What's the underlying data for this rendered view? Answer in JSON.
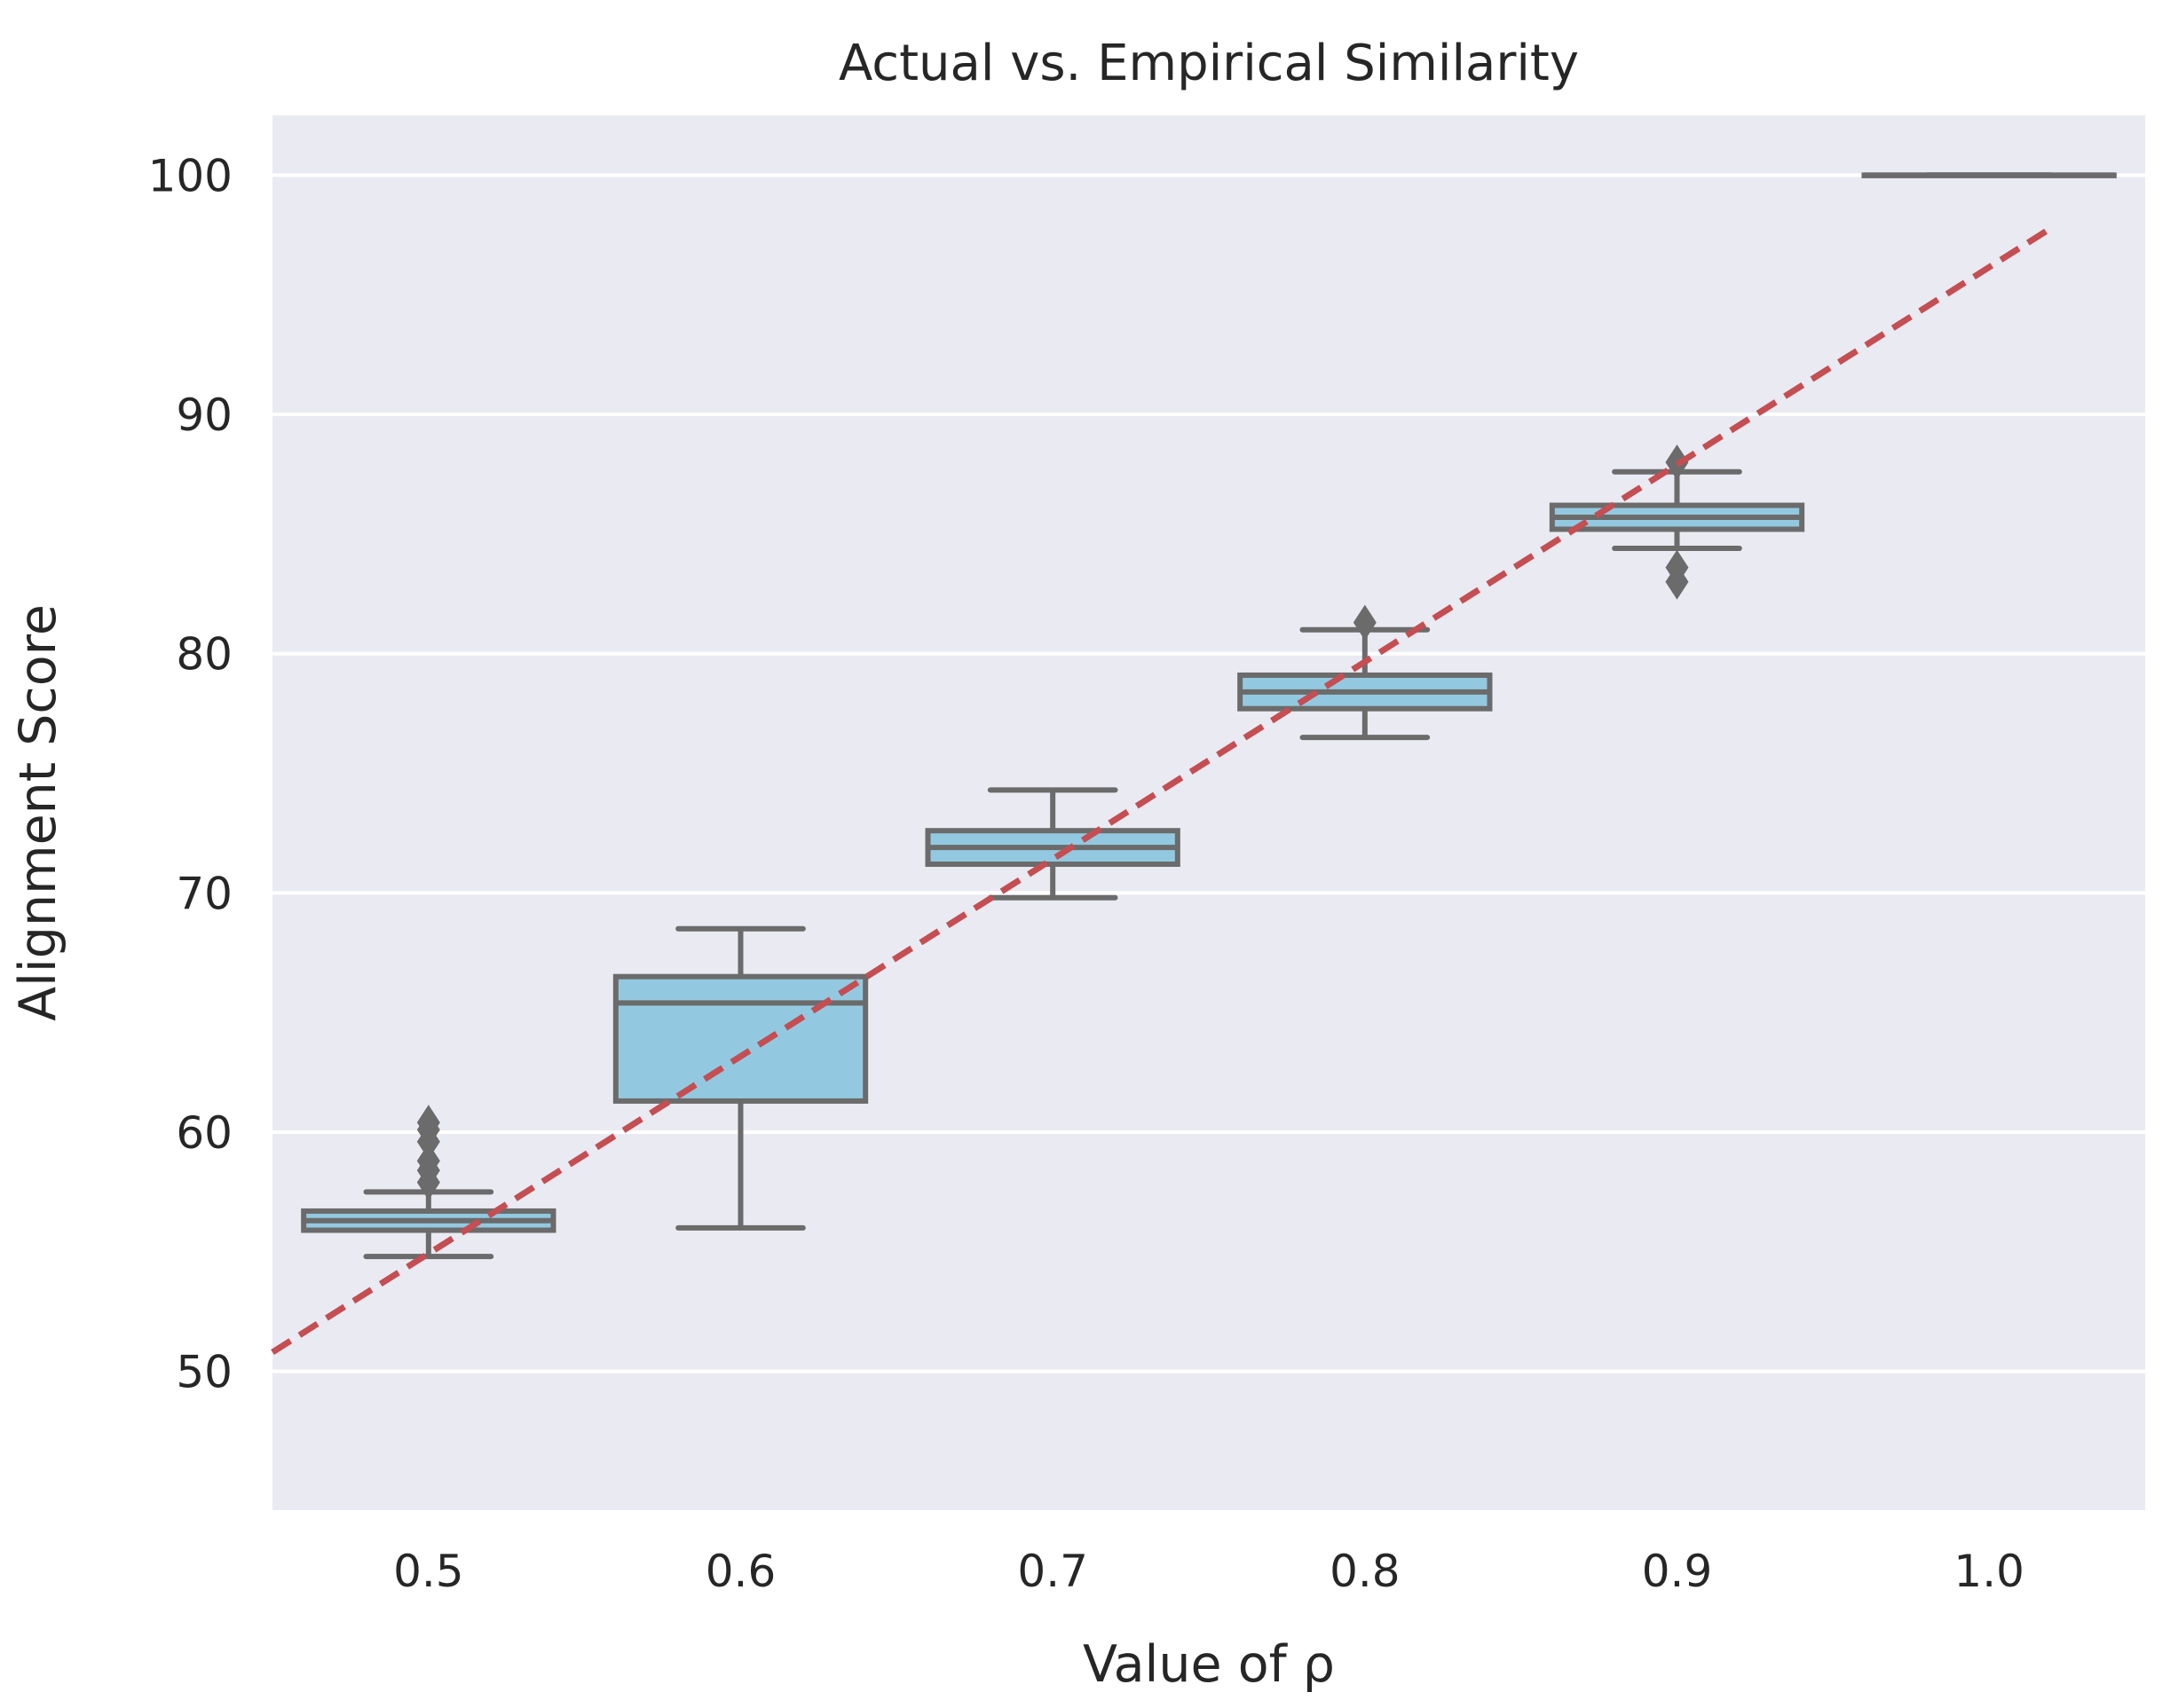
{
  "chart_data": {
    "type": "box",
    "title": "Actual vs. Empirical Similarity",
    "xlabel": "Value of ρ",
    "ylabel": "Alignment Score",
    "categories": [
      "0.5",
      "0.6",
      "0.7",
      "0.8",
      "0.9",
      "1.0"
    ],
    "yticks": [
      "50",
      "60",
      "70",
      "80",
      "90",
      "100"
    ],
    "ytick_values": [
      50,
      60,
      70,
      80,
      90,
      100
    ],
    "ylim": [
      44.2,
      102.5
    ],
    "grid": true,
    "boxes": [
      {
        "category": "0.5",
        "whisker_low": 54.8,
        "q1": 55.9,
        "median": 56.3,
        "q3": 56.7,
        "whisker_high": 57.5,
        "outliers": [
          57.9,
          58.4,
          58.8,
          59.6,
          60.1,
          60.4
        ]
      },
      {
        "category": "0.6",
        "whisker_low": 56.0,
        "q1": 61.3,
        "median": 65.4,
        "q3": 66.5,
        "whisker_high": 68.5,
        "outliers": []
      },
      {
        "category": "0.7",
        "whisker_low": 69.8,
        "q1": 71.2,
        "median": 71.9,
        "q3": 72.6,
        "whisker_high": 74.3,
        "outliers": []
      },
      {
        "category": "0.8",
        "whisker_low": 76.5,
        "q1": 77.7,
        "median": 78.4,
        "q3": 79.1,
        "whisker_high": 81.0,
        "outliers": [
          81.3
        ]
      },
      {
        "category": "0.9",
        "whisker_low": 84.4,
        "q1": 85.2,
        "median": 85.7,
        "q3": 86.2,
        "whisker_high": 87.6,
        "outliers": [
          83.0,
          83.6,
          88.0
        ]
      },
      {
        "category": "1.0",
        "whisker_low": 100.0,
        "q1": 100.0,
        "median": 100.0,
        "q3": 100.0,
        "whisker_high": 100.0,
        "outliers": []
      }
    ],
    "reference_line": {
      "style": "dashed",
      "x_start": 0.45,
      "y_start": 50.8,
      "x_end": 1.02,
      "y_end": 97.8
    },
    "colors": {
      "background": "#eaeaf2",
      "grid": "#ffffff",
      "box_fill": "#93c9e0",
      "box_edge": "#6b6b6b",
      "reference_line": "#c44e52"
    }
  }
}
